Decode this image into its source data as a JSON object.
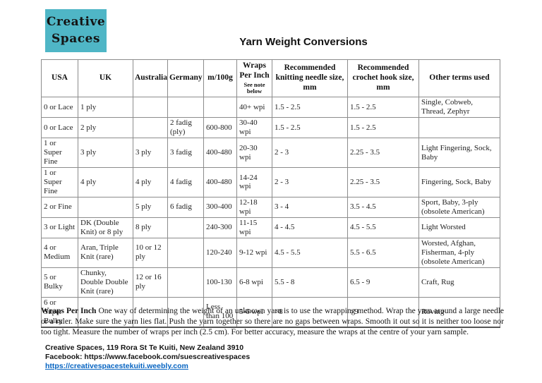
{
  "logo": {
    "line1": "Creative",
    "line2": "Spaces"
  },
  "title": "Yarn Weight Conversions",
  "table": {
    "headers": [
      "USA",
      "UK",
      "Australia",
      "Germany",
      "m/100g",
      "Wraps Per Inch",
      "Recommended knitting needle size, mm",
      "Recommended crochet hook size, mm",
      "Other terms used"
    ],
    "wraps_note": "See note below",
    "rows": [
      [
        "0 or Lace",
        "1 ply",
        "",
        "",
        "",
        "40+ wpi",
        "1.5 - 2.5",
        "1.5 - 2.5",
        "Single, Cobweb, Thread, Zephyr"
      ],
      [
        "0 or Lace",
        "2 ply",
        "",
        "2 fadig (ply)",
        "600-800",
        "30-40 wpi",
        "1.5 - 2.5",
        "1.5 - 2.5",
        ""
      ],
      [
        "1 or Super Fine",
        "3 ply",
        "3 ply",
        "3 fadig",
        "400-480",
        "20-30 wpi",
        "2 - 3",
        "2.25 - 3.5",
        "Light Fingering, Sock, Baby"
      ],
      [
        "1 or Super Fine",
        "4 ply",
        "4 ply",
        "4 fadig",
        "400-480",
        "14-24 wpi",
        "2 - 3",
        "2.25 - 3.5",
        "Fingering, Sock, Baby"
      ],
      [
        "2 or Fine",
        "",
        "5 ply",
        "6 fadig",
        "300-400",
        "12-18 wpi",
        "3 - 4",
        "3.5 - 4.5",
        "Sport, Baby, 3-ply (obsolete American)"
      ],
      [
        "3 or Light",
        "DK (Double Knit) or 8 ply",
        "8 ply",
        "",
        "240-300",
        "11-15 wpi",
        "4 - 4.5",
        "4.5 - 5.5",
        "Light Worsted"
      ],
      [
        "4 or Medium",
        "Aran, Triple Knit (rare)",
        "10 or 12 ply",
        "",
        "120-240",
        "9-12 wpi",
        "4.5 - 5.5",
        "5.5 - 6.5",
        "Worsted, Afghan, Fisherman, 4-ply (obsolete American)"
      ],
      [
        "5 or Bulky",
        "Chunky, Double Double Knit (rare)",
        "12 or 16 ply",
        "",
        "100-130",
        "6-8 wpi",
        "5.5 - 8",
        "6.5 - 9",
        "Craft, Rug"
      ],
      [
        "6 or Super Bulky",
        "",
        "",
        "",
        "Less than 100",
        "5-6 wpi",
        ">8",
        ">9",
        "Roving"
      ]
    ]
  },
  "note": {
    "lead": "Wraps Per Inch",
    "body": "One way of determining the weight of an unknown yarn is to use the wrapping method.  Wrap the yarn around a large needle or a ruler. Make sure the yarn lies flat. Push the yarn together so there are no gaps between wraps. Smooth it out so it is neither too loose nor too tight. Measure the number of wraps per inch (2.5 cm). For better accuracy, measure the wraps at the centre of your yarn sample."
  },
  "footer": {
    "address": "Creative Spaces, 119 Rora St Te Kuiti, New Zealand 3910",
    "facebook": "Facebook: https://www.facebook.com/suescreativespaces",
    "website": "https://creativespacestekuiti.weebly.com"
  },
  "colors": {
    "logo_bg": "#4fb6c6",
    "link": "#0563c1",
    "table_border": "#8c8c8c"
  }
}
